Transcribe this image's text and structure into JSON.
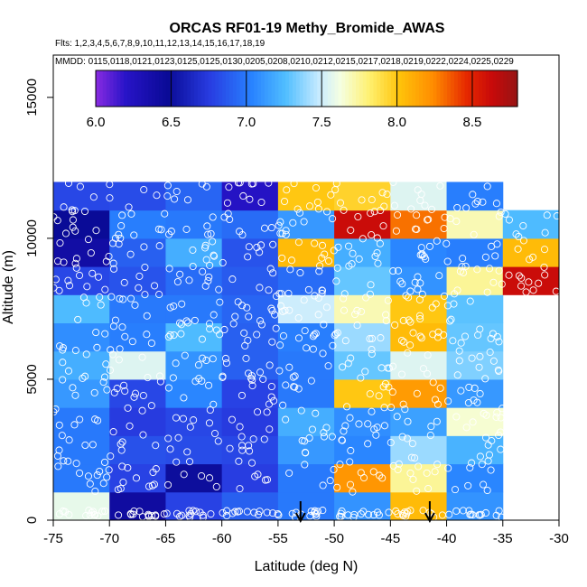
{
  "chart_data": {
    "type": "heatmap",
    "title": "ORCAS RF01-19 Methy_Bromide_AWAS",
    "flights_label": "Flts: 1,2,3,4,5,6,7,8,9,10,11,12,13,14,15,16,17,18,19",
    "dates_label": "MMDD: 0115,0118,0121,0123,0125,0125,0130,0205,0208,0210,0212,0215,0217,0218,0219,0222,0224,0225,0229",
    "xlabel": "Latitude (deg N)",
    "ylabel": "Altitude (m)",
    "xlim": [
      -75,
      -30
    ],
    "ylim": [
      0,
      16500
    ],
    "x_ticks": [
      -75,
      -70,
      -65,
      -60,
      -55,
      -50,
      -45,
      -40,
      -35,
      -30
    ],
    "x_tick_labels": [
      "-75",
      "-70",
      "-65",
      "-60",
      "-55",
      "-50",
      "-45",
      "-40",
      "-35",
      "-30"
    ],
    "y_ticks": [
      0,
      5000,
      10000,
      15000
    ],
    "y_tick_labels": [
      "0",
      "5000",
      "10000",
      "15000"
    ],
    "colorbar": {
      "range": [
        6.0,
        8.8
      ],
      "ticks": [
        6.0,
        6.5,
        7.0,
        7.5,
        8.0,
        8.5
      ],
      "tick_labels": [
        "6.0",
        "6.5",
        "7.0",
        "7.5",
        "8.0",
        "8.5"
      ]
    },
    "lat_bin_edges": [
      -75,
      -70,
      -65,
      -60,
      -55,
      -50,
      -45,
      -40,
      -35,
      -30
    ],
    "alt_bin_edges": [
      0,
      1000,
      2000,
      3000,
      4000,
      5000,
      6000,
      7000,
      8000,
      9000,
      10000,
      11000,
      12000
    ],
    "cells": [
      [
        7.58,
        6.42,
        6.78,
        6.9,
        7.0,
        7.1,
        8.05,
        7.1,
        null
      ],
      [
        7.0,
        6.78,
        6.5,
        6.76,
        7.0,
        8.2,
        7.75,
        7.05,
        null
      ],
      [
        7.0,
        6.84,
        6.82,
        6.8,
        7.12,
        7.05,
        7.4,
        7.22,
        null
      ],
      [
        7.0,
        6.75,
        6.8,
        6.75,
        7.2,
        7.08,
        7.15,
        7.65,
        null
      ],
      [
        7.12,
        6.8,
        7.05,
        6.78,
        7.0,
        8.0,
        8.18,
        7.12,
        null
      ],
      [
        7.2,
        7.55,
        7.1,
        6.9,
        7.0,
        7.3,
        7.55,
        7.35,
        null
      ],
      [
        7.08,
        7.02,
        7.25,
        6.9,
        7.02,
        7.4,
        8.05,
        7.3,
        null
      ],
      [
        7.25,
        7.0,
        7.0,
        6.92,
        7.5,
        7.7,
        8.0,
        7.28,
        null
      ],
      [
        6.8,
        6.85,
        6.95,
        6.88,
        6.95,
        7.3,
        7.1,
        7.75,
        8.62
      ],
      [
        6.4,
        6.9,
        7.2,
        6.85,
        8.05,
        7.2,
        7.05,
        7.02,
        8.05
      ],
      [
        6.48,
        7.02,
        7.0,
        6.95,
        7.12,
        8.62,
        8.3,
        7.7,
        7.25
      ],
      [
        6.8,
        6.82,
        6.92,
        6.22,
        8.0,
        7.95,
        7.55,
        7.02,
        null
      ]
    ],
    "flight_track_markers_lat": [
      -53,
      -41.5
    ]
  }
}
